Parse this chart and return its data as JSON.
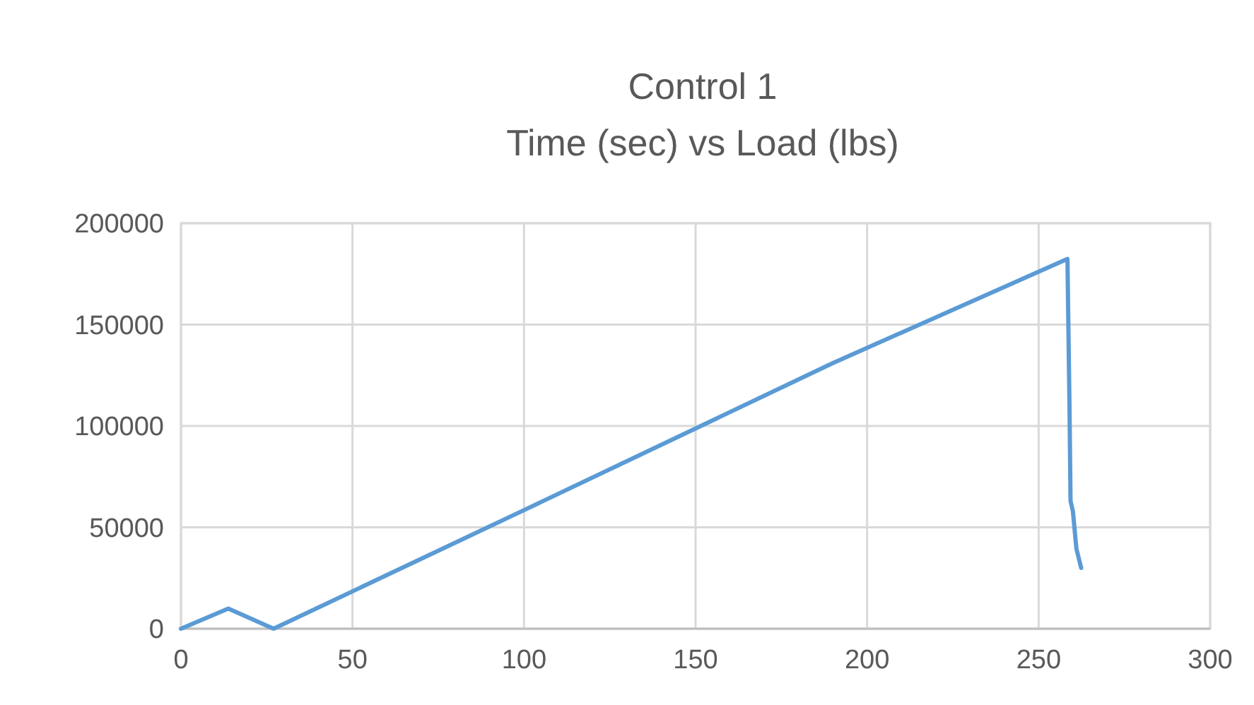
{
  "chart_data": {
    "type": "line",
    "title": "Control 1",
    "subtitle": "Time (sec) vs Load (lbs)",
    "series": [
      {
        "color": "#5b9bd5",
        "x": [
          0,
          13.8,
          27,
          100,
          190,
          258.4,
          259,
          259.3,
          260,
          261,
          262.4
        ],
        "values": [
          0,
          9900,
          0,
          58500,
          131000,
          182400,
          109000,
          63000,
          57800,
          39500,
          30000
        ]
      }
    ],
    "xlim": [
      0,
      300
    ],
    "xticks": [
      0,
      50,
      100,
      150,
      200,
      250,
      300
    ],
    "ylim": [
      0,
      200000
    ],
    "yticks": [
      0,
      50000,
      100000,
      150000,
      200000
    ],
    "grid": true,
    "marker": "none",
    "line_style": "solid"
  }
}
